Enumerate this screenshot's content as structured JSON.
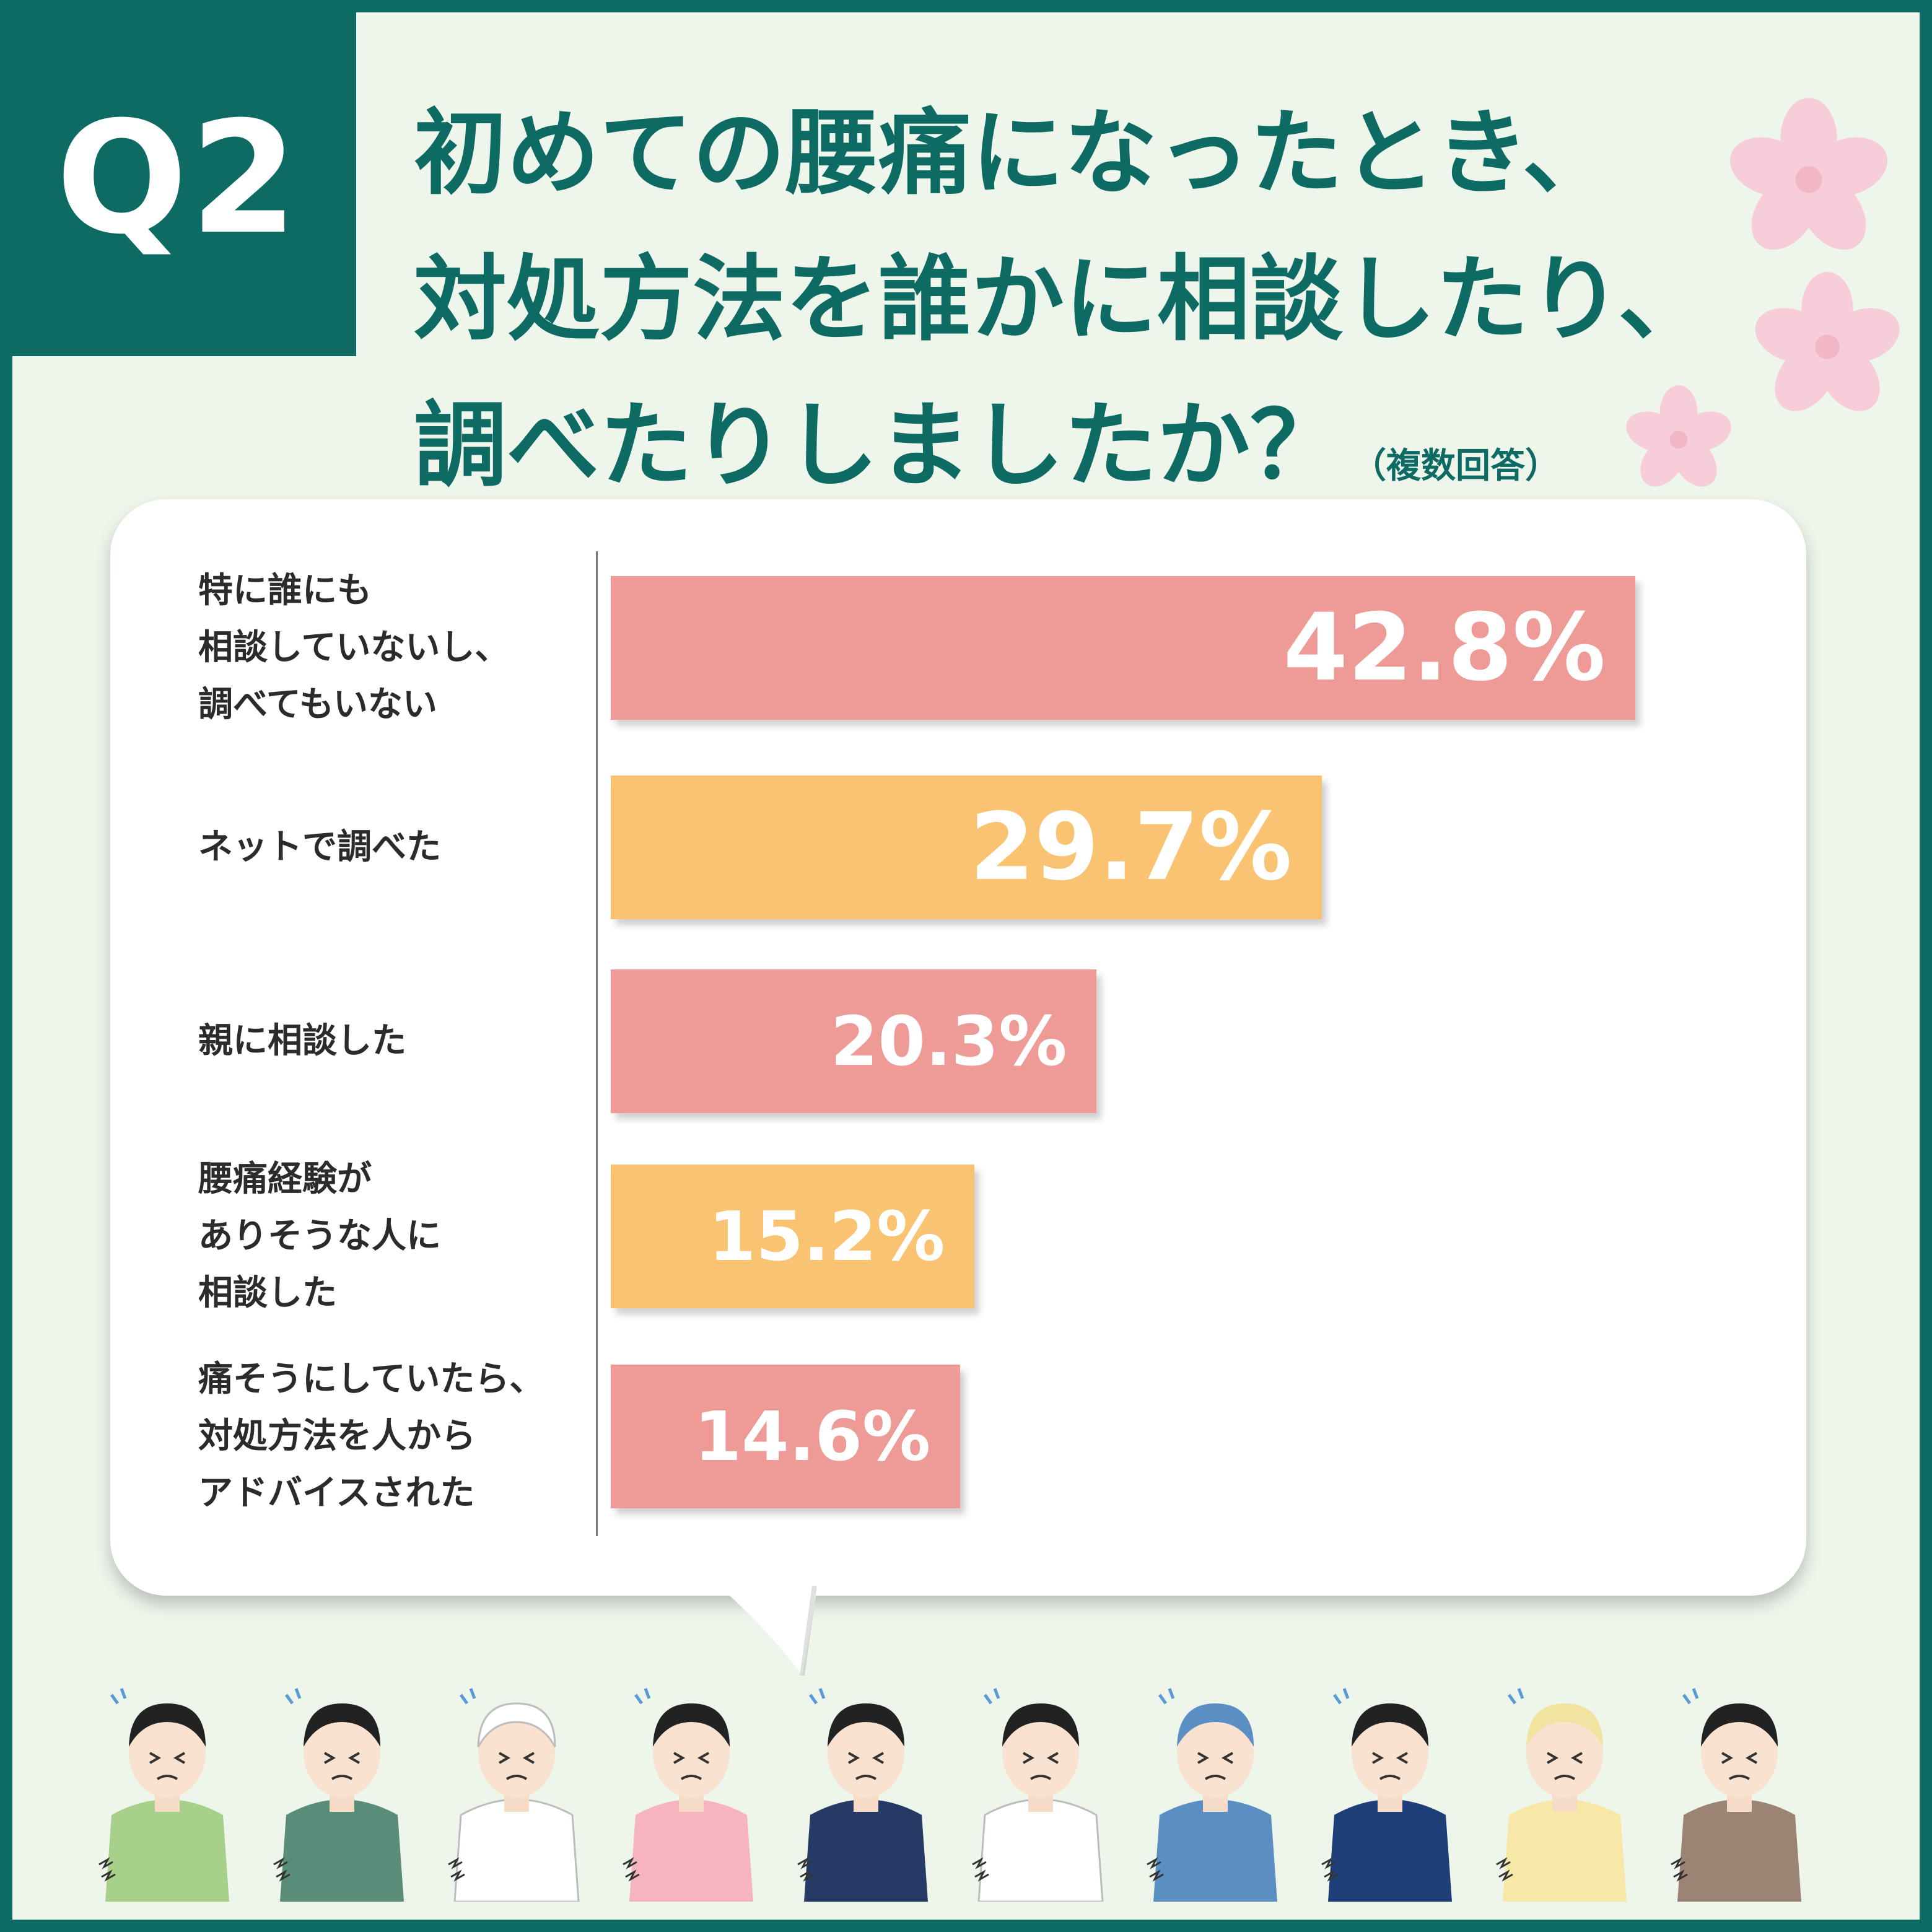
{
  "badge": "Q2",
  "title": {
    "line1": "初めての腰痛になったとき、",
    "line2": "対処方法を誰かに相談したり、",
    "line3": "調べたりしましたか？",
    "note": "（複数回答）"
  },
  "colors": {
    "frame": "#0d6b63",
    "pink": "#ee9a96",
    "orange": "#fac372",
    "sakura": "#f6cdd8"
  },
  "chart_data": {
    "type": "bar",
    "orientation": "horizontal",
    "categories": [
      "特に誰にも\n相談していないし、\n調べてもいない",
      "ネットで調べた",
      "親に相談した",
      "腰痛経験が\nありそうな人に\n相談した",
      "痛そうにしていたら、\n対処方法を人から\nアドバイスされた"
    ],
    "values": [
      42.8,
      29.7,
      20.3,
      15.2,
      14.6
    ],
    "value_labels": [
      "42.8%",
      "29.7%",
      "20.3%",
      "15.2%",
      "14.6%"
    ],
    "bar_colors": [
      "#ee9a96",
      "#fac372",
      "#ee9a96",
      "#fac372",
      "#ee9a96"
    ],
    "unit": "%",
    "xlim": [
      0,
      60
    ],
    "grid": false,
    "legend": "none"
  },
  "illustration": {
    "people": [
      {
        "icon": "staff-apron-woman-icon",
        "clothes": "#a7d08a",
        "hair": "#222222"
      },
      {
        "icon": "headband-vest-man-icon",
        "clothes": "#5a8c7a",
        "hair": "#222222"
      },
      {
        "icon": "chef-icon",
        "clothes": "#ffffff",
        "hair": "#ffffff"
      },
      {
        "icon": "nursery-apron-woman-icon",
        "clothes": "#f6b4bf",
        "hair": "#222222"
      },
      {
        "icon": "suit-man-icon",
        "clothes": "#263a66",
        "hair": "#222222"
      },
      {
        "icon": "nurse-icon",
        "clothes": "#ffffff",
        "hair": "#222222"
      },
      {
        "icon": "worker-cap-man-icon",
        "clothes": "#5b8fc4",
        "hair": "#5b8fc4"
      },
      {
        "icon": "office-woman-icon",
        "clothes": "#1e3f7a",
        "hair": "#222222"
      },
      {
        "icon": "kitchen-staff-woman-icon",
        "clothes": "#f7e8a8",
        "hair": "#f1e3a0"
      },
      {
        "icon": "glasses-vest-man-icon",
        "clothes": "#9b8474",
        "hair": "#222222"
      }
    ]
  }
}
